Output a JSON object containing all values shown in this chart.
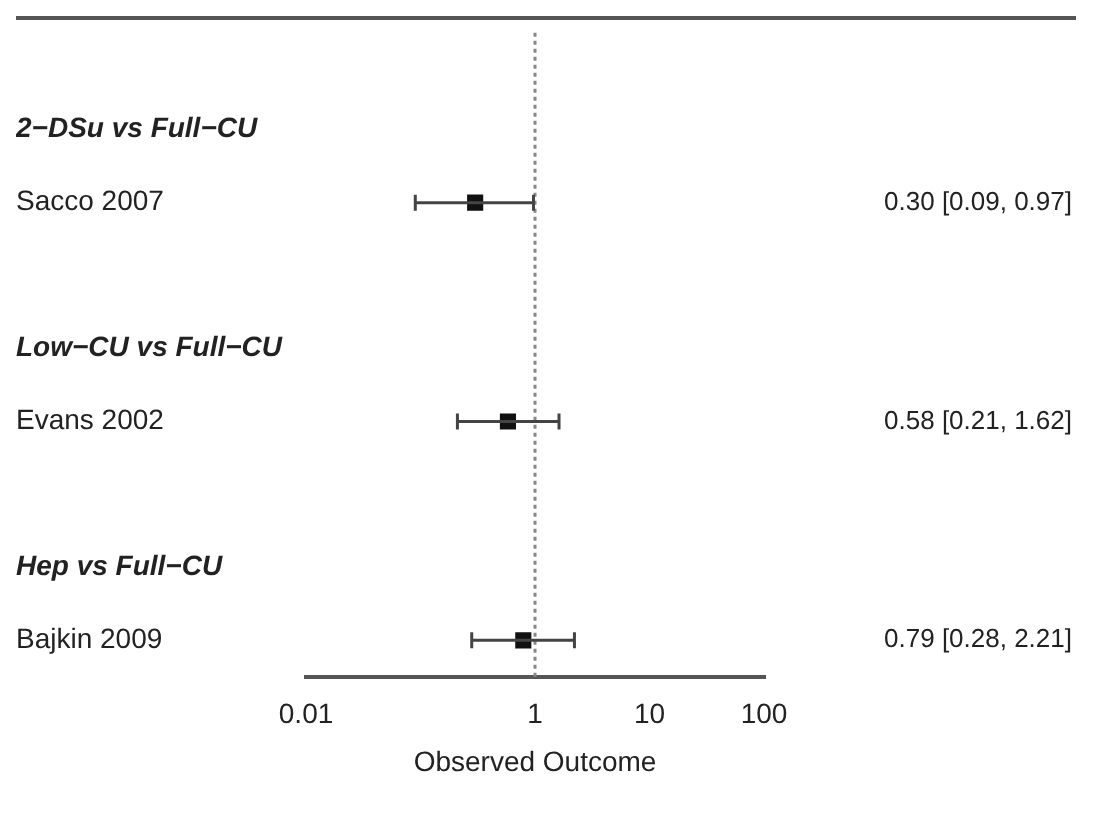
{
  "chart_data": {
    "type": "scatter",
    "orientation": "horizontal",
    "xlabel": "Observed Outcome",
    "categories": [
      "2−DSu vs Full−CU",
      "Sacco 2007",
      null,
      "Low−CU vs Full−CU",
      "Evans 2002",
      null,
      "Hep vs Full−CU",
      "Bajkin 2009"
    ],
    "values": [
      null,
      0.3,
      null,
      null,
      0.58,
      null,
      null,
      0.79
    ],
    "errors": [
      null,
      [
        0.09,
        0.97
      ],
      null,
      null,
      [
        0.21,
        1.62
      ],
      null,
      null,
      [
        0.28,
        2.21
      ]
    ],
    "value_labels": [
      null,
      "0.30 [0.09, 0.97]",
      null,
      null,
      "0.58 [0.21, 1.62]",
      null,
      null,
      "0.79 [0.28, 2.21]"
    ],
    "color": "#111111",
    "marker": "square",
    "log": "x",
    "xlim": [
      0.01,
      100
    ],
    "xticks": [
      0.01,
      1,
      10,
      100
    ],
    "ref_lines": [
      {
        "axis": "x",
        "value": 1,
        "line_style": "dotted",
        "color": "#888888"
      }
    ],
    "grid": false,
    "legend": false
  }
}
